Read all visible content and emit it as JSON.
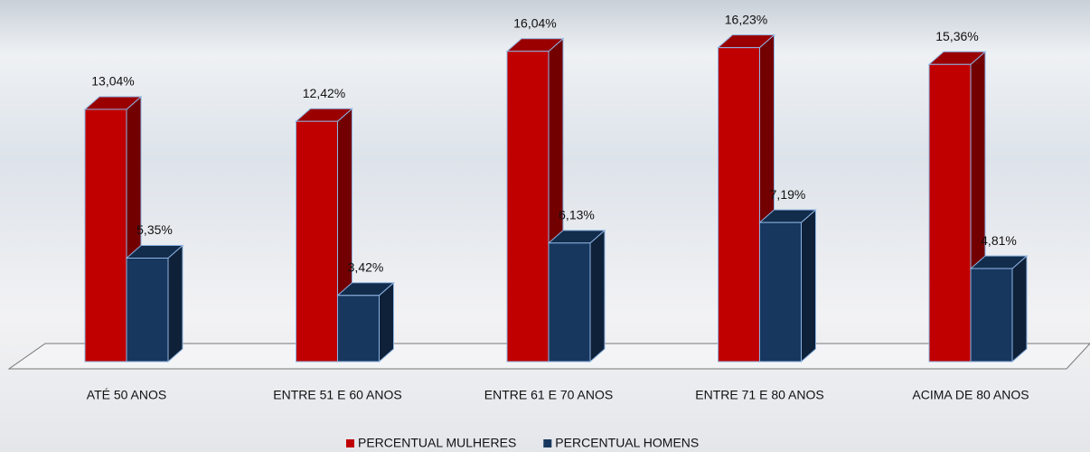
{
  "chart_data": {
    "type": "bar3d",
    "categories": [
      "ATÉ 50 ANOS",
      "ENTRE 51 E 60 ANOS",
      "ENTRE 61 E 70 ANOS",
      "ENTRE 71 E 80 ANOS",
      "ACIMA DE 80 ANOS"
    ],
    "series": [
      {
        "name": "PERCENTUAL MULHERES",
        "color": "#c00000",
        "values": [
          13.04,
          12.42,
          16.04,
          16.23,
          15.36
        ],
        "value_labels": [
          "13,04%",
          "12,42%",
          "16,04%",
          "16,23%",
          "15,36%"
        ]
      },
      {
        "name": "PERCENTUAL HOMENS",
        "color": "#17375e",
        "values": [
          5.35,
          3.42,
          6.13,
          7.19,
          4.81
        ],
        "value_labels": [
          "5,35%",
          "3,42%",
          "6,13%",
          "7,19%",
          "4,81%"
        ]
      }
    ]
  }
}
